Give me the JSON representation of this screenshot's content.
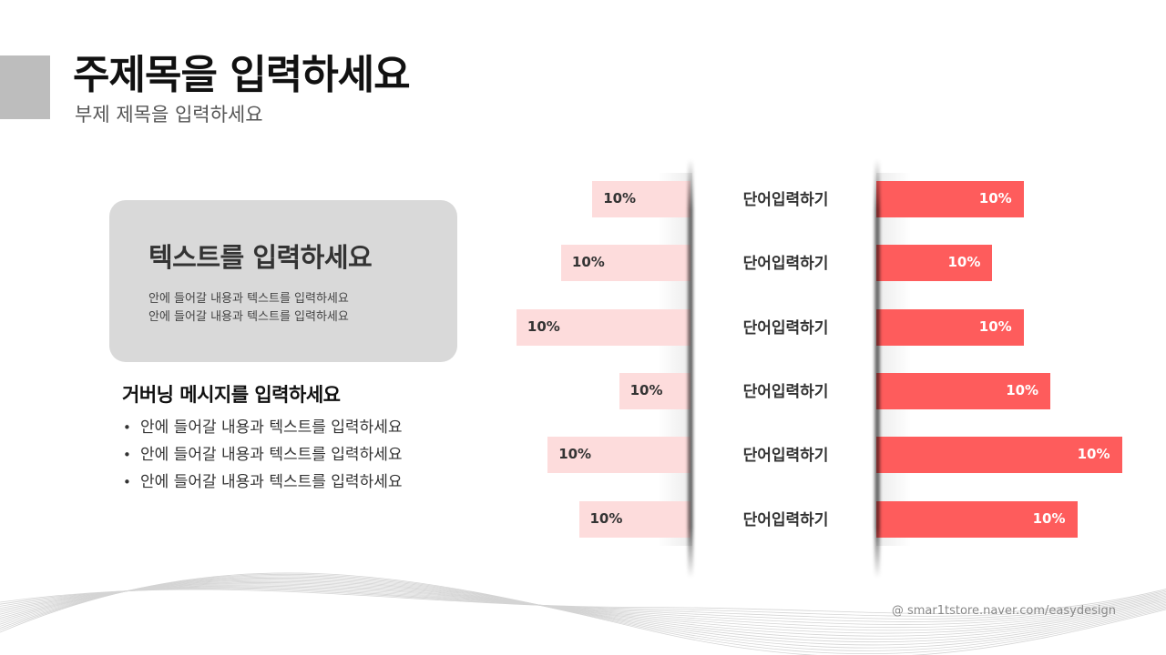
{
  "header": {
    "title": "주제목을 입력하세요",
    "subtitle": "부제 제목을 입력하세요"
  },
  "card": {
    "title": "텍스트를 입력하세요",
    "lines": [
      "안에 들어갈 내용과 텍스트를 입력하세요",
      "안에 들어갈 내용과 텍스트를 입력하세요"
    ]
  },
  "governing": {
    "title": "거버닝 메시지를 입력하세요",
    "bullets": [
      "안에 들어갈 내용과 텍스트를 입력하세요",
      "안에 들어갈 내용과 텍스트를 입력하세요",
      "안에 들어갈 내용과 텍스트를 입력하세요"
    ]
  },
  "chart_data": {
    "type": "bar",
    "categories": [
      "단어입력하기",
      "단어입력하기",
      "단어입력하기",
      "단어입력하기",
      "단어입력하기",
      "단어입력하기"
    ],
    "series": [
      {
        "values": [
          22,
          29,
          39,
          16,
          32,
          25
        ],
        "labels": [
          "10%",
          "10%",
          "10%",
          "10%",
          "10%",
          "10%"
        ],
        "color": "#fddcdc"
      },
      {
        "values": [
          33,
          26,
          33,
          39,
          55,
          45
        ],
        "labels": [
          "10%",
          "10%",
          "10%",
          "10%",
          "10%",
          "10%"
        ],
        "color": "#fe5c5c"
      }
    ]
  },
  "footer": {
    "credit": "@ smar1tstore.naver.com/easydesign"
  },
  "colors": {
    "accent_block": "#bdbdbd",
    "card_bg": "#d9d9d9",
    "left_bar": "#fddcdc",
    "right_bar": "#fe5c5c"
  }
}
